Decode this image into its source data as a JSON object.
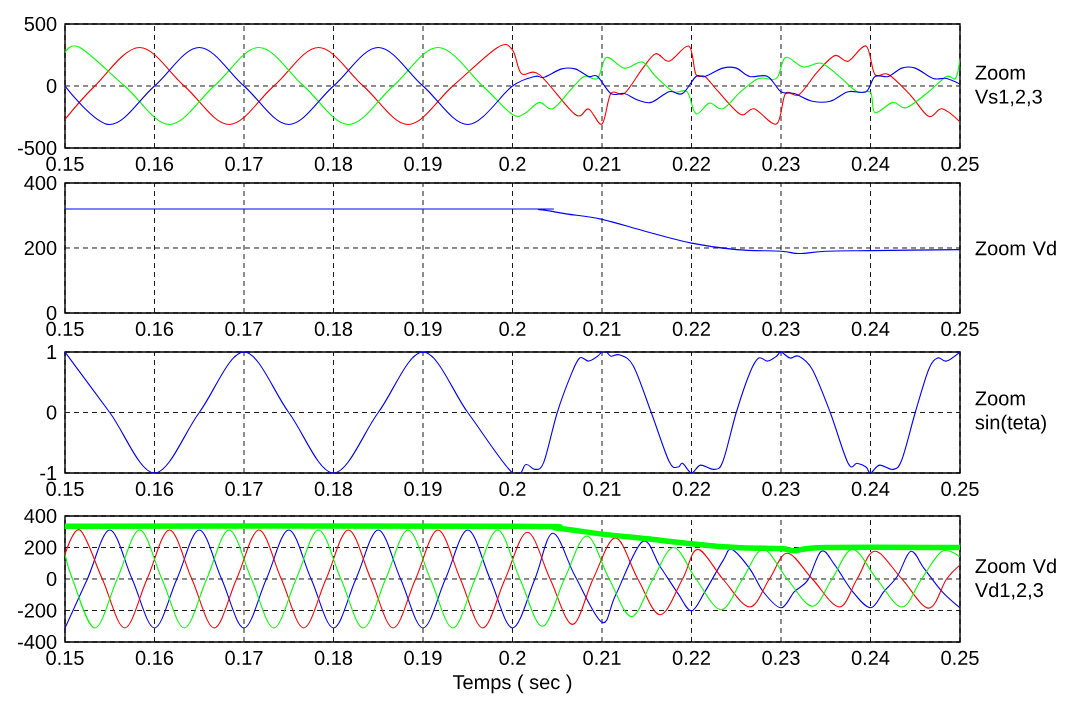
{
  "chart_data": [
    {
      "type": "line",
      "ylabel": "Zoom Vs1,2,3",
      "xlim": [
        0.15,
        0.25
      ],
      "xticks": [
        0.15,
        0.16,
        0.17,
        0.18,
        0.19,
        0.2,
        0.21,
        0.22,
        0.23,
        0.24,
        0.25
      ],
      "ylim": [
        -500,
        500
      ],
      "yticks": [
        -500,
        0,
        500
      ],
      "grid": true,
      "series": [
        {
          "color": "#ff0000",
          "x": [
            0.15,
            0.15333,
            0.15833,
            0.16333,
            0.16833,
            0.17333,
            0.17833,
            0.18333,
            0.18833,
            0.19333,
            0.19833,
            0.2,
            0.201,
            0.203,
            0.207,
            0.2085,
            0.21,
            0.211,
            0.2125,
            0.2145,
            0.216,
            0.2175,
            0.2197,
            0.2205,
            0.2215,
            0.223,
            0.2255,
            0.227,
            0.2295,
            0.2305,
            0.232,
            0.234,
            0.236,
            0.2375,
            0.2395,
            0.2405,
            0.242,
            0.2445,
            0.2465,
            0.248,
            0.25
          ],
          "values": [
            -269,
            0,
            311,
            0,
            -311,
            0,
            311,
            0,
            -311,
            0,
            311,
            290,
            100,
            92,
            -230,
            -185,
            -307,
            -60,
            -60,
            138,
            260,
            200,
            322,
            92,
            77,
            -46,
            -230,
            -184,
            -307,
            -61,
            -70,
            107,
            245,
            200,
            322,
            92,
            92,
            -77,
            -245,
            -184,
            -290
          ]
        },
        {
          "color": "#00ff00",
          "x": [
            0.15,
            0.15167,
            0.15667,
            0.16167,
            0.16667,
            0.17167,
            0.17667,
            0.18167,
            0.18667,
            0.19167,
            0.19667,
            0.2,
            0.2015,
            0.203,
            0.2045,
            0.2065,
            0.208,
            0.2095,
            0.2105,
            0.2125,
            0.2145,
            0.216,
            0.218,
            0.2195,
            0.2205,
            0.222,
            0.2235,
            0.2255,
            0.2275,
            0.2295,
            0.2305,
            0.2325,
            0.2345,
            0.2365,
            0.2385,
            0.24,
            0.2405,
            0.2425,
            0.244,
            0.2465,
            0.2485,
            0.2495,
            0.25
          ],
          "values": [
            269,
            311,
            0,
            -311,
            0,
            311,
            0,
            -311,
            0,
            311,
            0,
            -230,
            -215,
            -132,
            -184,
            -31,
            77,
            61,
            230,
            144,
            193,
            77,
            -46,
            -46,
            -224,
            -138,
            -184,
            -46,
            61,
            61,
            230,
            153,
            184,
            77,
            -46,
            -52,
            -215,
            -132,
            -175,
            -46,
            77,
            61,
            215
          ]
        },
        {
          "color": "#0000ff",
          "x": [
            0.15,
            0.155,
            0.16,
            0.165,
            0.17,
            0.175,
            0.18,
            0.185,
            0.19,
            0.195,
            0.2,
            0.2025,
            0.2035,
            0.2055,
            0.207,
            0.2085,
            0.2095,
            0.211,
            0.2125,
            0.214,
            0.2155,
            0.2175,
            0.219,
            0.2205,
            0.2215,
            0.2235,
            0.225,
            0.2265,
            0.2285,
            0.23,
            0.2315,
            0.2335,
            0.2355,
            0.2375,
            0.2395,
            0.2405,
            0.242,
            0.2435,
            0.245,
            0.247,
            0.2485,
            0.25
          ],
          "values": [
            0,
            -311,
            0,
            311,
            0,
            -311,
            0,
            311,
            0,
            -311,
            0,
            77,
            70,
            138,
            138,
            77,
            77,
            -61,
            -61,
            -113,
            -132,
            -46,
            -61,
            77,
            77,
            144,
            144,
            77,
            77,
            -46,
            -61,
            -123,
            -123,
            -46,
            -46,
            77,
            77,
            144,
            144,
            61,
            61,
            15
          ]
        }
      ]
    },
    {
      "type": "line",
      "ylabel": "Zoom Vd",
      "xlim": [
        0.15,
        0.25
      ],
      "xticks": [
        0.15,
        0.16,
        0.17,
        0.18,
        0.19,
        0.2,
        0.21,
        0.22,
        0.23,
        0.24,
        0.25
      ],
      "ylim": [
        0,
        400
      ],
      "yticks": [
        0,
        200,
        400
      ],
      "grid": true,
      "color": "#0000ff",
      "x": [
        0.15,
        0.2,
        0.203,
        0.206,
        0.21,
        0.215,
        0.22,
        0.225,
        0.23,
        0.232,
        0.235,
        0.24,
        0.25
      ],
      "values": [
        320,
        320,
        318,
        305,
        288,
        250,
        215,
        195,
        190,
        183,
        190,
        192,
        195
      ]
    },
    {
      "type": "line",
      "ylabel": "Zoom sin(teta)",
      "xlim": [
        0.15,
        0.25
      ],
      "xticks": [
        0.15,
        0.16,
        0.17,
        0.18,
        0.19,
        0.2,
        0.21,
        0.22,
        0.23,
        0.24,
        0.25
      ],
      "ylim": [
        -1,
        1
      ],
      "yticks": [
        -1,
        0,
        1
      ],
      "grid": true,
      "color": "#0000ff",
      "x": [
        0.15,
        0.155,
        0.16,
        0.165,
        0.17,
        0.175,
        0.18,
        0.185,
        0.19,
        0.195,
        0.2,
        0.2015,
        0.2025,
        0.2035,
        0.205,
        0.2065,
        0.2075,
        0.2085,
        0.2095,
        0.21,
        0.2105,
        0.211,
        0.212,
        0.2135,
        0.2155,
        0.2175,
        0.2185,
        0.219,
        0.22,
        0.221,
        0.2225,
        0.2235,
        0.225,
        0.2265,
        0.2275,
        0.2285,
        0.2295,
        0.23,
        0.231,
        0.232,
        0.2335,
        0.2355,
        0.2375,
        0.2385,
        0.2395,
        0.24,
        0.241,
        0.2425,
        0.2435,
        0.245,
        0.2465,
        0.2475,
        0.2485,
        0.25
      ],
      "values": [
        1,
        0,
        -1,
        0,
        1,
        0,
        -1,
        0,
        1,
        0,
        -1,
        -0.86,
        -0.94,
        -0.82,
        0,
        0.61,
        0.9,
        0.85,
        0.93,
        1,
        1,
        0.93,
        0.95,
        0.77,
        0,
        -0.81,
        -0.9,
        -0.84,
        -1,
        -0.87,
        -0.94,
        -0.81,
        0,
        0.65,
        0.9,
        0.85,
        0.93,
        1,
        0.9,
        0.93,
        0.71,
        0,
        -0.84,
        -0.84,
        -0.9,
        -1,
        -0.87,
        -0.94,
        -0.78,
        0,
        0.71,
        0.9,
        0.85,
        1
      ]
    },
    {
      "type": "line",
      "ylabel": "Zoom Vd Vd1,2,3",
      "xlabel": "Temps ( sec )",
      "xlim": [
        0.15,
        0.25
      ],
      "xticks": [
        0.15,
        0.16,
        0.17,
        0.18,
        0.19,
        0.2,
        0.21,
        0.22,
        0.23,
        0.24,
        0.25
      ],
      "ylim": [
        -400,
        400
      ],
      "yticks": [
        -400,
        -200,
        0,
        200,
        400
      ],
      "grid": true,
      "series": [
        {
          "color": "#0000ff",
          "x": [
            0.15,
            0.1525,
            0.155,
            0.1575,
            0.16,
            0.1625,
            0.165,
            0.1675,
            0.17,
            0.1725,
            0.175,
            0.1775,
            0.18,
            0.1825,
            0.185,
            0.1875,
            0.19,
            0.1925,
            0.195,
            0.1975,
            0.2,
            0.2025,
            0.2045,
            0.207,
            0.21,
            0.2115,
            0.2145,
            0.2165,
            0.2185,
            0.22,
            0.2215,
            0.2235,
            0.2245,
            0.2265,
            0.228,
            0.23,
            0.2315,
            0.233,
            0.2345,
            0.236,
            0.238,
            0.24,
            0.2415,
            0.243,
            0.2445,
            0.246,
            0.248,
            0.25
          ],
          "values": [
            -311,
            0,
            311,
            0,
            -311,
            0,
            311,
            0,
            -311,
            0,
            311,
            0,
            -311,
            0,
            311,
            0,
            -311,
            0,
            311,
            0,
            -311,
            0,
            290,
            17,
            -275,
            -105,
            237,
            78,
            -93,
            -202,
            -80,
            115,
            188,
            66,
            -80,
            -183,
            -80,
            -7,
            176,
            90,
            -80,
            -183,
            -80,
            17,
            176,
            66,
            -80,
            -183
          ]
        },
        {
          "color": "#ff0000",
          "x": [
            0.15,
            0.15167,
            0.15417,
            0.15667,
            0.15917,
            0.16167,
            0.16417,
            0.16667,
            0.16917,
            0.17167,
            0.17417,
            0.17667,
            0.17917,
            0.18167,
            0.18417,
            0.18667,
            0.18917,
            0.19167,
            0.19417,
            0.19667,
            0.19917,
            0.20167,
            0.2042,
            0.2067,
            0.209,
            0.2115,
            0.214,
            0.2165,
            0.219,
            0.2207,
            0.2235,
            0.2265,
            0.2287,
            0.2307,
            0.2335,
            0.2365,
            0.2385,
            0.2405,
            0.2435,
            0.2465,
            0.2485,
            0.25
          ],
          "values": [
            156,
            311,
            0,
            -311,
            0,
            311,
            0,
            -311,
            0,
            311,
            0,
            -311,
            0,
            311,
            0,
            -311,
            0,
            311,
            0,
            -311,
            0,
            297,
            0,
            -288,
            0,
            261,
            0,
            -227,
            0,
            188,
            0,
            -178,
            0,
            163,
            0,
            -178,
            0,
            176,
            0,
            -185,
            0,
            90
          ]
        },
        {
          "color": "#00ff00",
          "x": [
            0.15,
            0.15083,
            0.15333,
            0.15583,
            0.15833,
            0.16083,
            0.16333,
            0.16583,
            0.16833,
            0.17083,
            0.17333,
            0.17583,
            0.17833,
            0.18083,
            0.18333,
            0.18583,
            0.18833,
            0.19083,
            0.19333,
            0.19583,
            0.19833,
            0.20083,
            0.20333,
            0.2058,
            0.2083,
            0.2108,
            0.2133,
            0.2157,
            0.218,
            0.2205,
            0.2233,
            0.2257,
            0.228,
            0.2307,
            0.2335,
            0.2357,
            0.238,
            0.2407,
            0.2435,
            0.2457,
            0.248,
            0.25
          ],
          "values": [
            156,
            0,
            -311,
            0,
            311,
            0,
            -311,
            0,
            311,
            0,
            -311,
            0,
            311,
            0,
            -311,
            0,
            311,
            0,
            -311,
            0,
            311,
            0,
            -300,
            0,
            273,
            0,
            -239,
            0,
            200,
            0,
            -195,
            0,
            188,
            0,
            -173,
            0,
            188,
            0,
            -178,
            0,
            176,
            139
          ]
        },
        {
          "color": "#00ff00",
          "x": [
            0.15,
            0.2,
            0.205,
            0.21,
            0.215,
            0.22,
            0.225,
            0.23,
            0.2315,
            0.235,
            0.25
          ],
          "values": [
            335,
            335,
            322,
            285,
            255,
            224,
            200,
            193,
            180,
            200,
            200
          ]
        }
      ]
    }
  ]
}
